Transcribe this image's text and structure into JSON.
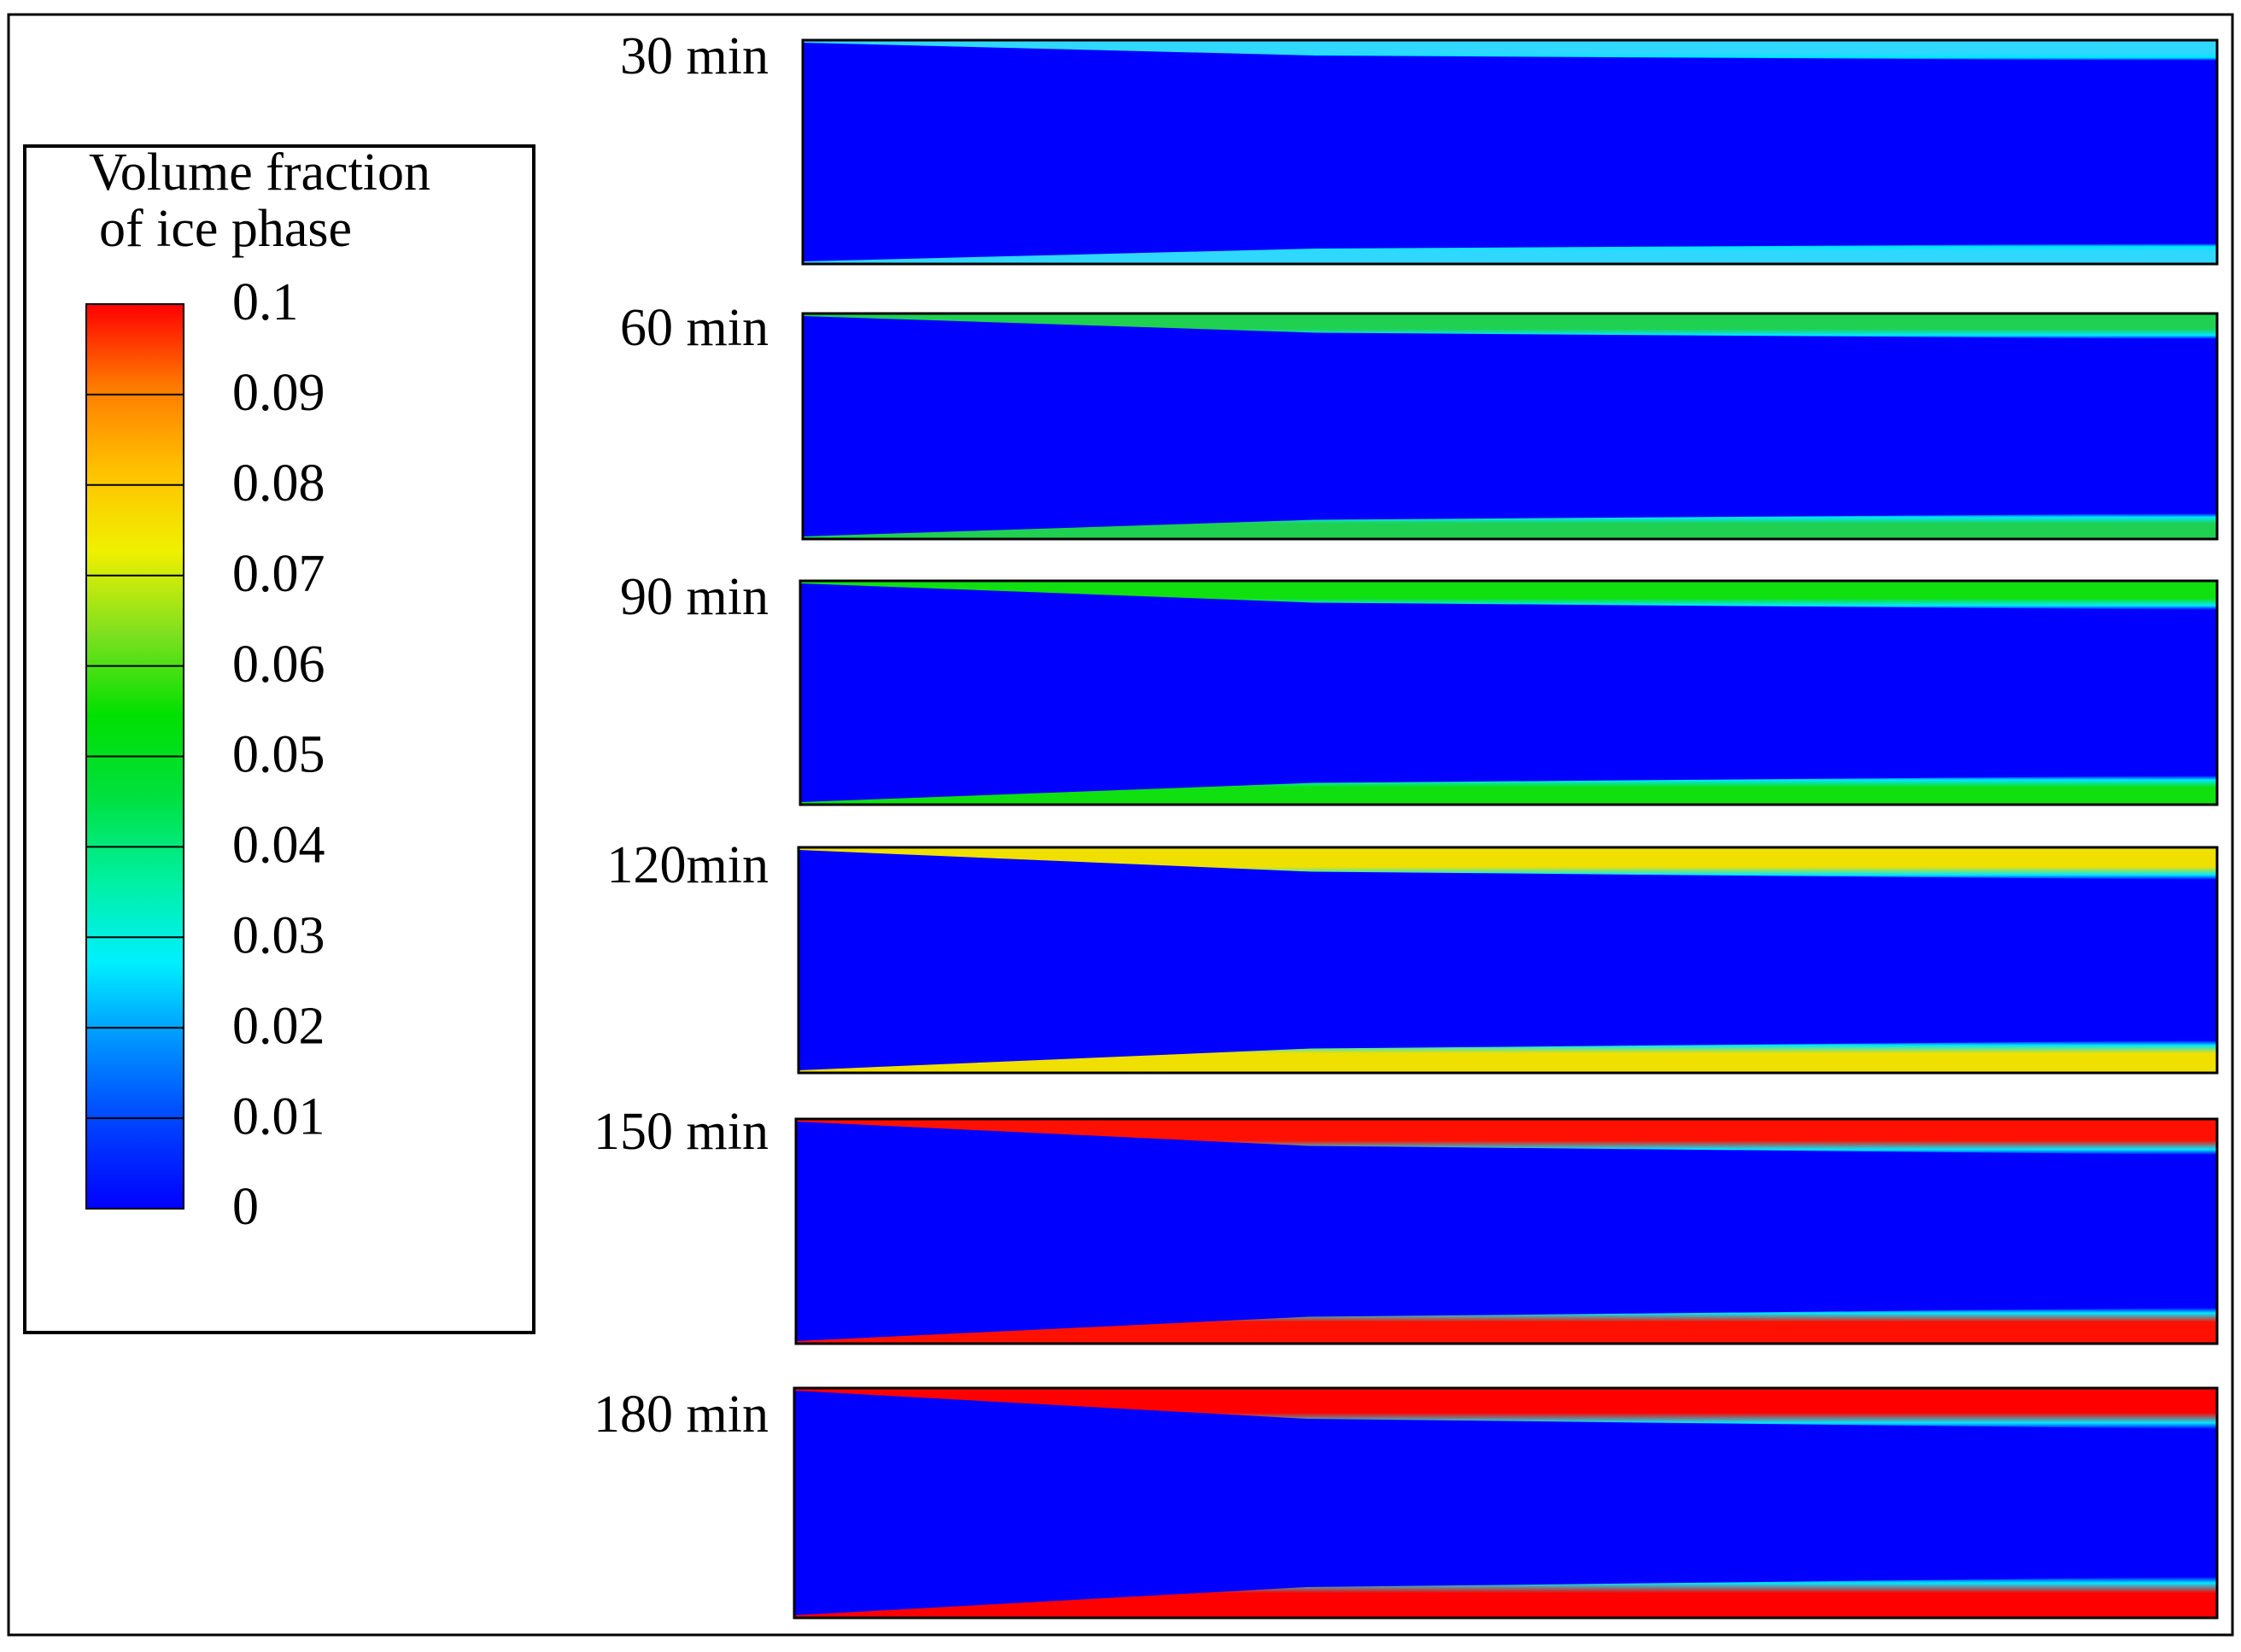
{
  "legend": {
    "title_lines": [
      "Volume fraction",
      "of ice phase"
    ],
    "ticks": [
      0.1,
      0.09,
      0.08,
      0.07,
      0.06,
      0.05,
      0.04,
      0.03,
      0.02,
      0.01,
      0
    ],
    "colors": [
      "#ff0000",
      "#ff7a00",
      "#ffc000",
      "#f0f000",
      "#80e020",
      "#00e000",
      "#00e040",
      "#00f0a0",
      "#00f0ff",
      "#0090ff",
      "#0040ff",
      "#0000ff"
    ]
  },
  "panels": [
    {
      "label": "30 min",
      "color": "#30d8ff"
    },
    {
      "label": "60 min",
      "color": "#20d050"
    },
    {
      "label": "90 min",
      "color": "#10e010"
    },
    {
      "label": "120min",
      "color": "#f0e000"
    },
    {
      "label": "150 min",
      "color": "#ff1000"
    },
    {
      "label": "180 min",
      "color": "#ff0000"
    }
  ]
}
